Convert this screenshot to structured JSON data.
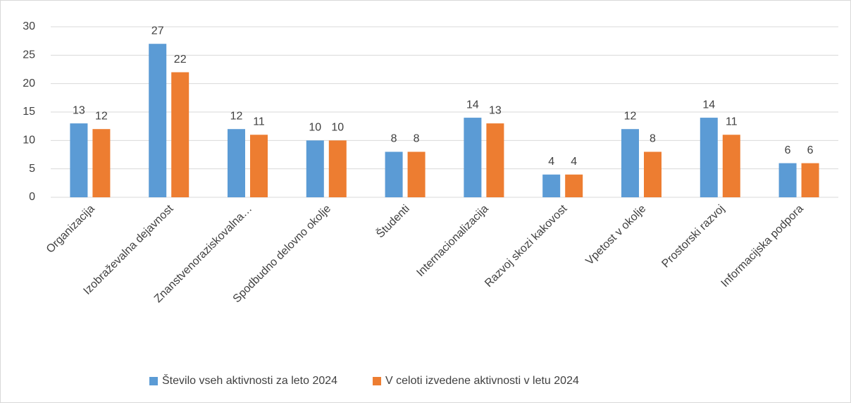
{
  "chart_data": {
    "type": "bar",
    "categories": [
      "Organizacija",
      "Izobraževalna dejavnost",
      "Znanstvenoraziskovalna…",
      "Spodbudno delovno okolje",
      "Študenti",
      "Internacionalizacija",
      "Razvoj skozi kakovost",
      "Vpetost v okolje",
      "Prostorski razvoj",
      "Informacijska podpora"
    ],
    "series": [
      {
        "name": "Število vseh aktivnosti za leto 2024",
        "color": "#5b9bd5",
        "values": [
          13,
          27,
          12,
          10,
          8,
          14,
          4,
          12,
          14,
          6
        ]
      },
      {
        "name": "V celoti izvedene aktivnosti v letu 2024",
        "color": "#ed7d31",
        "values": [
          12,
          22,
          11,
          10,
          8,
          13,
          4,
          8,
          11,
          6
        ]
      }
    ],
    "ylim": [
      0,
      30
    ],
    "yticks": [
      0,
      5,
      10,
      15,
      20,
      25,
      30
    ],
    "grid": true,
    "legend": "bottom"
  }
}
